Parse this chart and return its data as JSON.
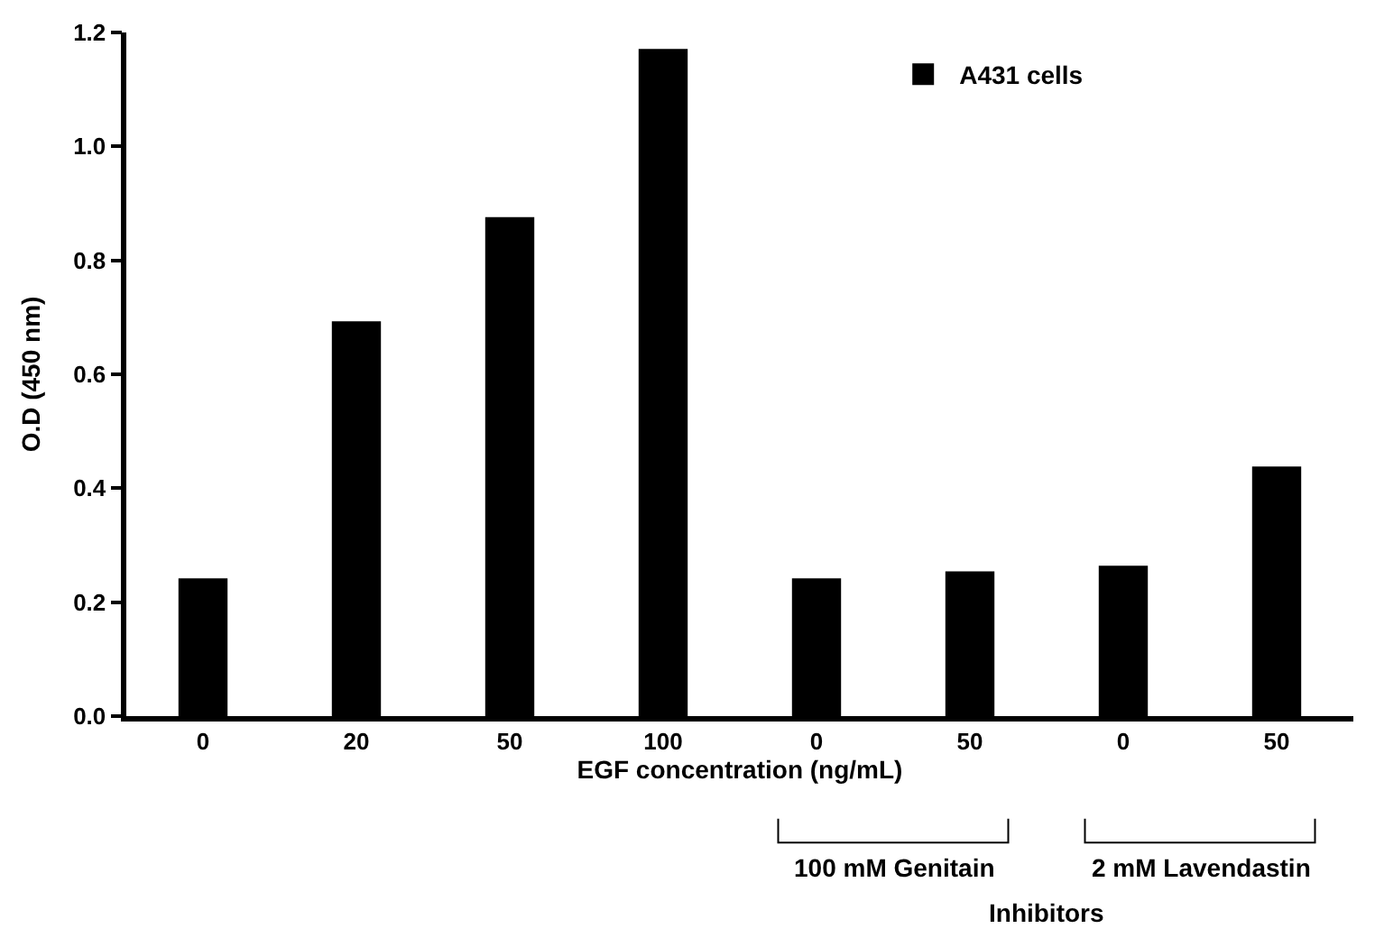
{
  "chart_data": {
    "type": "bar",
    "xlabel": "EGF concentration (ng/mL)",
    "ylabel": "O.D (450 nm)",
    "categories": [
      "0",
      "20",
      "50",
      "100",
      "0",
      "50",
      "0",
      "50"
    ],
    "series": [
      {
        "name": "A431 cells",
        "color": "#000000",
        "values": [
          0.242,
          0.693,
          0.876,
          1.171,
          0.242,
          0.254,
          0.264,
          0.438
        ]
      }
    ],
    "ylim": [
      0,
      1.2
    ],
    "yticks": [
      {
        "value": 0,
        "label": "0.0"
      },
      0.2,
      0.4,
      0.6,
      0.8,
      {
        "value": 1,
        "label": "1.0"
      },
      1.2
    ],
    "legend": "top right",
    "annotations": [
      "100 mM Genitain",
      "2 mM Lavendastin",
      "Inhibitors"
    ]
  }
}
